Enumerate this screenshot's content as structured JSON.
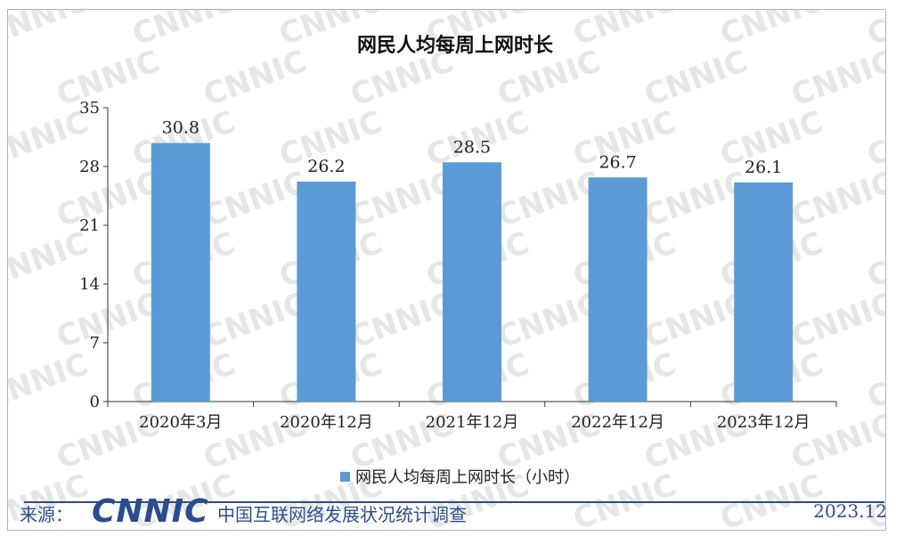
{
  "chart_data": {
    "type": "bar",
    "title": "网民人均每周上网时长",
    "categories": [
      "2020年3月",
      "2020年12月",
      "2021年12月",
      "2022年12月",
      "2023年12月"
    ],
    "series": [
      {
        "name": "网民人均每周上网时长（小时）",
        "values": [
          30.8,
          26.2,
          28.5,
          26.7,
          26.1
        ],
        "color": "#5b9bd5"
      }
    ],
    "y_ticks": [
      "0",
      "7",
      "14",
      "21",
      "28",
      "35"
    ],
    "ylim": [
      0,
      35
    ],
    "grid": false,
    "legend_position": "bottom",
    "xlabel": "",
    "ylabel": ""
  },
  "watermark": "CNNIC",
  "footer": {
    "source_label": "来源：",
    "logo_text": "CNNIC",
    "survey_name": "中国互联网络发展状况统计调查",
    "date": "2023.12"
  },
  "colors": {
    "bar": "#5b9bd5",
    "footer_blue": "#2b4c8e"
  }
}
